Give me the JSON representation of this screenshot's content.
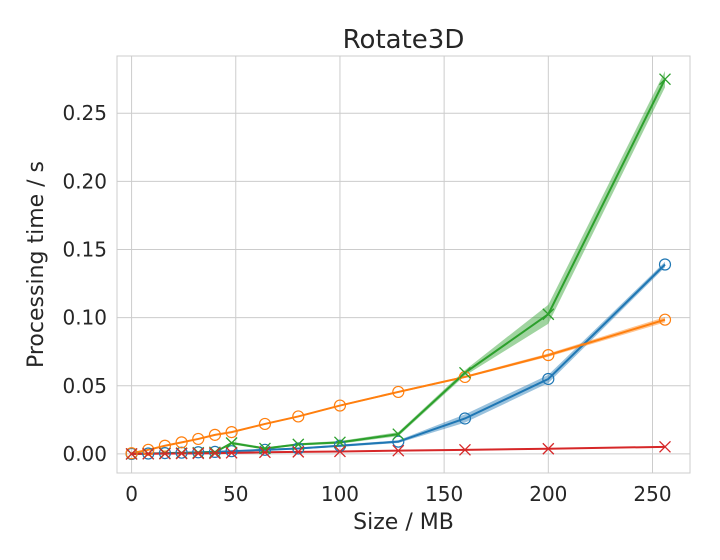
{
  "chart_data": {
    "type": "line",
    "title": "Rotate3D",
    "xlabel": "Size / MB",
    "ylabel": "Processing time / s",
    "xlim": [
      -7,
      268
    ],
    "ylim": [
      -0.014,
      0.292
    ],
    "xticks": [
      0,
      50,
      100,
      150,
      200,
      250
    ],
    "yticks": [
      0.0,
      0.05,
      0.1,
      0.15,
      0.2,
      0.25
    ],
    "ytick_labels": [
      "0.00",
      "0.05",
      "0.10",
      "0.15",
      "0.20",
      "0.25"
    ],
    "grid": true,
    "legend": null,
    "series": [
      {
        "color": "#1f77b4",
        "marker": "circle",
        "x": [
          0,
          8,
          16,
          24,
          32,
          40,
          48,
          64,
          80,
          100,
          128,
          160,
          200,
          256
        ],
        "y": [
          0.0,
          0.0003,
          0.0006,
          0.0009,
          0.0012,
          0.0015,
          0.002,
          0.003,
          0.004,
          0.006,
          0.009,
          0.026,
          0.055,
          0.139
        ],
        "band": [
          0.0,
          0.0002,
          0.0003,
          0.0003,
          0.0004,
          0.0004,
          0.0005,
          0.0006,
          0.0007,
          0.0008,
          0.001,
          0.003,
          0.003,
          0.002
        ]
      },
      {
        "color": "#ff7f0e",
        "marker": "circle",
        "x": [
          0,
          8,
          16,
          24,
          32,
          40,
          48,
          64,
          80,
          100,
          128,
          160,
          200,
          256
        ],
        "y": [
          0.0005,
          0.003,
          0.006,
          0.0085,
          0.011,
          0.014,
          0.016,
          0.022,
          0.0275,
          0.0355,
          0.0455,
          0.0565,
          0.0725,
          0.0985
        ],
        "band": [
          0.0002,
          0.0003,
          0.0003,
          0.0003,
          0.0003,
          0.0004,
          0.0004,
          0.0005,
          0.0005,
          0.0006,
          0.0007,
          0.0008,
          0.0012,
          0.002
        ]
      },
      {
        "color": "#2ca02c",
        "marker": "x",
        "x": [
          0,
          8,
          16,
          24,
          32,
          40,
          48,
          64,
          80,
          100,
          128,
          160,
          200,
          256
        ],
        "y": [
          0.0,
          0.0002,
          0.0004,
          0.0006,
          0.0009,
          0.0012,
          0.008,
          0.004,
          0.007,
          0.0085,
          0.0145,
          0.0595,
          0.1025,
          0.275
        ],
        "band": [
          0.0,
          0.0002,
          0.0003,
          0.0003,
          0.0004,
          0.0004,
          0.001,
          0.0008,
          0.0008,
          0.001,
          0.0015,
          0.002,
          0.007,
          0.006
        ]
      },
      {
        "color": "#d62728",
        "marker": "x",
        "x": [
          0,
          8,
          16,
          24,
          32,
          40,
          48,
          64,
          80,
          100,
          128,
          160,
          200,
          256
        ],
        "y": [
          0.0,
          0.0001,
          0.0002,
          0.0003,
          0.0004,
          0.0005,
          0.0008,
          0.0012,
          0.0015,
          0.0018,
          0.0024,
          0.003,
          0.0038,
          0.0052
        ],
        "band": [
          0.0,
          0.0001,
          0.0001,
          0.0001,
          0.0001,
          0.0001,
          0.0001,
          0.0002,
          0.0002,
          0.0002,
          0.0003,
          0.0003,
          0.0003,
          0.0004
        ]
      }
    ]
  }
}
